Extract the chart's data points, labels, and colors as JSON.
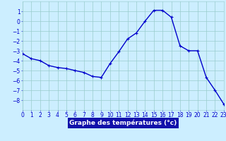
{
  "x": [
    0,
    1,
    2,
    3,
    4,
    5,
    6,
    7,
    8,
    9,
    10,
    11,
    12,
    13,
    14,
    15,
    16,
    17,
    18,
    19,
    20,
    21,
    22,
    23
  ],
  "y": [
    -3.3,
    -3.8,
    -4.0,
    -4.5,
    -4.7,
    -4.8,
    -5.0,
    -5.2,
    -5.6,
    -5.7,
    -4.3,
    -3.1,
    -1.8,
    -1.2,
    0.0,
    1.1,
    1.1,
    0.4,
    -2.5,
    -3.0,
    -3.0,
    -5.7,
    -7.0,
    -8.4
  ],
  "line_color": "#0000cc",
  "marker": "+",
  "bg_color": "#cceeff",
  "grid_color": "#99cccc",
  "xlabel": "Graphe des températures (°c)",
  "xlabel_bg": "#1111aa",
  "xlabel_color": "#ffffff",
  "ylim": [
    -9,
    2
  ],
  "xlim": [
    0,
    23
  ],
  "yticks": [
    -8,
    -7,
    -6,
    -5,
    -4,
    -3,
    -2,
    -1,
    0,
    1
  ],
  "xticks": [
    0,
    1,
    2,
    3,
    4,
    5,
    6,
    7,
    8,
    9,
    10,
    11,
    12,
    13,
    14,
    15,
    16,
    17,
    18,
    19,
    20,
    21,
    22,
    23
  ],
  "tick_fontsize": 5.5,
  "xlabel_fontsize": 6.5,
  "line_width": 1.0,
  "marker_size": 3.5
}
